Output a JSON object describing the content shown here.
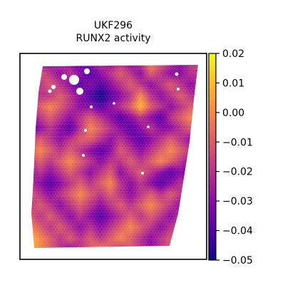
{
  "chart_data": {
    "type": "heatmap",
    "title": "UKF296",
    "subtitle": "RUNX2 activity",
    "colormap": "plasma",
    "colorbar": {
      "vmin": -0.05,
      "vmax": 0.02,
      "ticks": [
        0.02,
        0.01,
        0.0,
        -0.01,
        -0.02,
        -0.03,
        -0.04,
        -0.05
      ],
      "tick_labels": [
        "0.02",
        "0.01",
        "0.00",
        "−0.01",
        "−0.02",
        "−0.03",
        "−0.04",
        "−0.05"
      ]
    },
    "axes_ticks_visible": false,
    "grid": false,
    "cell_values": [
      [
        -0.02,
        -0.03,
        -0.03,
        -0.02,
        -0.03,
        -0.04,
        -0.03,
        -0.02,
        -0.03,
        -0.02,
        -0.03,
        -0.02,
        0.0,
        -0.01,
        -0.02,
        -0.03,
        -0.02,
        -0.01
      ],
      [
        -0.03,
        -0.01,
        -0.02,
        -0.03,
        -0.02,
        -0.03,
        -0.04,
        -0.03,
        -0.02,
        -0.01,
        -0.02,
        -0.03,
        -0.01,
        -0.02,
        -0.03,
        -0.03,
        -0.02,
        -0.02
      ],
      [
        -0.04,
        -0.02,
        -0.01,
        -0.02,
        -0.03,
        -0.04,
        -0.03,
        -0.04,
        -0.03,
        -0.02,
        -0.01,
        -0.02,
        -0.03,
        -0.02,
        -0.01,
        -0.02,
        -0.03,
        -0.02
      ],
      [
        -0.03,
        -0.02,
        -0.02,
        -0.01,
        -0.02,
        -0.03,
        -0.04,
        -0.05,
        -0.04,
        -0.03,
        -0.02,
        0.0,
        -0.02,
        -0.03,
        -0.02,
        -0.01,
        -0.02,
        -0.03
      ],
      [
        -0.02,
        -0.01,
        0.0,
        -0.01,
        -0.02,
        -0.03,
        -0.03,
        -0.04,
        -0.03,
        -0.02,
        -0.01,
        0.01,
        -0.01,
        -0.02,
        -0.03,
        -0.02,
        -0.01,
        -0.02
      ],
      [
        -0.03,
        -0.02,
        -0.01,
        -0.02,
        -0.03,
        -0.02,
        -0.01,
        -0.02,
        -0.03,
        -0.04,
        -0.03,
        -0.02,
        -0.03,
        -0.04,
        -0.02,
        -0.01,
        0.0,
        -0.01
      ],
      [
        -0.04,
        -0.03,
        -0.02,
        -0.03,
        -0.04,
        -0.02,
        0.0,
        -0.01,
        -0.02,
        -0.03,
        -0.04,
        -0.03,
        -0.02,
        -0.03,
        -0.03,
        -0.02,
        -0.01,
        -0.02
      ],
      [
        -0.02,
        -0.01,
        -0.02,
        -0.03,
        -0.02,
        -0.01,
        -0.01,
        -0.02,
        -0.03,
        -0.02,
        -0.03,
        -0.04,
        -0.03,
        -0.02,
        -0.01,
        -0.02,
        -0.03,
        -0.03
      ],
      [
        -0.01,
        0.0,
        -0.01,
        -0.02,
        -0.01,
        -0.02,
        -0.03,
        -0.04,
        -0.03,
        -0.01,
        -0.02,
        -0.03,
        -0.02,
        -0.01,
        0.0,
        -0.01,
        -0.02,
        -0.02
      ],
      [
        -0.02,
        -0.01,
        -0.02,
        -0.01,
        0.0,
        -0.01,
        -0.02,
        -0.03,
        -0.02,
        -0.02,
        -0.01,
        -0.02,
        -0.01,
        0.0,
        -0.01,
        -0.02,
        -0.03,
        -0.02
      ],
      [
        -0.03,
        -0.02,
        -0.03,
        -0.02,
        -0.01,
        -0.02,
        -0.03,
        -0.02,
        -0.01,
        -0.03,
        -0.02,
        -0.01,
        -0.02,
        -0.03,
        -0.04,
        -0.03,
        -0.04,
        -0.03
      ],
      [
        -0.02,
        -0.03,
        -0.04,
        -0.03,
        -0.02,
        -0.01,
        -0.02,
        -0.01,
        0.0,
        -0.02,
        -0.03,
        -0.02,
        -0.03,
        -0.04,
        -0.03,
        -0.02,
        -0.03,
        -0.02
      ],
      [
        -0.01,
        -0.02,
        -0.03,
        -0.02,
        -0.01,
        0.0,
        -0.01,
        -0.02,
        -0.01,
        -0.02,
        -0.03,
        -0.02,
        -0.01,
        -0.02,
        -0.01,
        -0.02,
        -0.01,
        -0.01
      ],
      [
        -0.02,
        -0.01,
        -0.02,
        -0.03,
        -0.02,
        -0.01,
        -0.02,
        -0.03,
        -0.02,
        -0.01,
        -0.02,
        -0.01,
        0.0,
        -0.01,
        -0.02,
        -0.03,
        -0.02,
        -0.01
      ],
      [
        -0.01,
        -0.02,
        -0.01,
        -0.02,
        -0.03,
        -0.02,
        -0.03,
        -0.04,
        -0.03,
        -0.02,
        -0.01,
        -0.02,
        -0.01,
        -0.02,
        -0.03,
        -0.02,
        -0.01,
        -0.02
      ],
      [
        0.0,
        -0.01,
        -0.02,
        -0.01,
        -0.02,
        -0.03,
        -0.02,
        -0.03,
        -0.02,
        -0.01,
        0.0,
        -0.01,
        -0.02,
        -0.03,
        -0.02,
        -0.01,
        -0.02,
        -0.03
      ],
      [
        0.01,
        0.0,
        -0.01,
        -0.02,
        -0.01,
        -0.02,
        -0.01,
        -0.02,
        -0.01,
        0.0,
        -0.01,
        -0.02,
        -0.03,
        -0.02,
        -0.01,
        -0.02,
        -0.03,
        -0.02
      ],
      [
        0.01,
        0.0,
        -0.01,
        -0.02,
        -0.03,
        -0.02,
        -0.01,
        0.0,
        -0.01,
        -0.02,
        -0.01,
        -0.02,
        -0.03,
        -0.02,
        -0.01,
        -0.02,
        -0.02,
        -0.01
      ]
    ]
  },
  "colors": {
    "plasma_stops": [
      "#0d0887",
      "#5302a3",
      "#8b0aa5",
      "#b83289",
      "#db5c68",
      "#f48849",
      "#febd2a",
      "#f0f921"
    ],
    "axes_frame": "#000000",
    "background": "#ffffff"
  }
}
